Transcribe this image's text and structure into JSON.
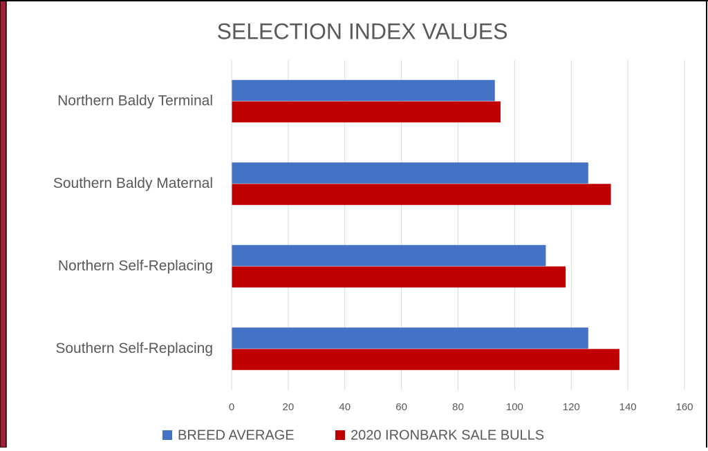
{
  "chart_data": {
    "type": "hbar",
    "title": "SELECTION INDEX VALUES",
    "categories": [
      "Northern Baldy Terminal",
      "Southern Baldy Maternal",
      "Northern Self-Replacing",
      "Southern Self-Replacing"
    ],
    "series": [
      {
        "name": "BREED AVERAGE",
        "color": "#4472c4",
        "values": [
          93,
          126,
          111,
          126
        ]
      },
      {
        "name": "2020 IRONBARK SALE BULLS",
        "color": "#c00000",
        "values": [
          95,
          134,
          118,
          137
        ]
      }
    ],
    "xlim": [
      0,
      160
    ],
    "xticks": [
      0,
      20,
      40,
      60,
      80,
      100,
      120,
      140,
      160
    ],
    "grid": true,
    "legend": "bottom"
  }
}
